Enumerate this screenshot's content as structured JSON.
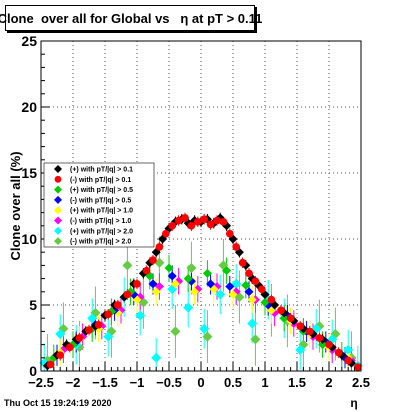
{
  "page": {
    "footer_date": "Thu Oct 15 19:24:19 2020"
  },
  "chart_data": {
    "type": "scatter",
    "title": "Clone  over all for Global vs   η at pT > 0.11",
    "xlabel": "η",
    "ylabel": "Clone  over all (%)",
    "xlim": [
      -2.5,
      2.5
    ],
    "ylim": [
      0,
      25
    ],
    "x_ticks": [
      -2.5,
      -2,
      -1.5,
      -1,
      -0.5,
      0,
      0.5,
      1,
      1.5,
      2,
      2.5
    ],
    "x_tick_labels": [
      "−2.5",
      "−2",
      "−1.5",
      "−1",
      "−0.5",
      "0",
      "0.5",
      "1",
      "1.5",
      "2",
      "2.5"
    ],
    "y_ticks": [
      0,
      5,
      10,
      15,
      20,
      25
    ],
    "y_tick_labels": [
      "0",
      "5",
      "10",
      "15",
      "20",
      "25"
    ],
    "grid": true,
    "legend_position": "left",
    "series": [
      {
        "name": "(+) with pT/|q| > 0.1",
        "color": "#000000",
        "marker": "diamond",
        "points": [
          [
            -2.4,
            0.4
          ],
          [
            -2.25,
            1.2
          ],
          [
            -2.1,
            2.0
          ],
          [
            -1.95,
            2.4
          ],
          [
            -1.8,
            3.0
          ],
          [
            -1.65,
            3.4
          ],
          [
            -1.5,
            4.2
          ],
          [
            -1.35,
            5.0
          ],
          [
            -1.2,
            5.6
          ],
          [
            -1.05,
            6.6
          ],
          [
            -0.9,
            7.4
          ],
          [
            -0.8,
            8.2
          ],
          [
            -0.7,
            9.0
          ],
          [
            -0.6,
            10.0
          ],
          [
            -0.5,
            10.8
          ],
          [
            -0.4,
            11.3
          ],
          [
            -0.3,
            11.5
          ],
          [
            -0.2,
            11.2
          ],
          [
            -0.1,
            11.4
          ],
          [
            0.0,
            11.3
          ],
          [
            0.1,
            11.5
          ],
          [
            0.2,
            11.2
          ],
          [
            0.3,
            11.6
          ],
          [
            0.4,
            11.0
          ],
          [
            0.5,
            10.0
          ],
          [
            0.6,
            9.0
          ],
          [
            0.7,
            8.0
          ],
          [
            0.8,
            7.0
          ],
          [
            0.9,
            6.5
          ],
          [
            1.0,
            5.8
          ],
          [
            1.15,
            5.0
          ],
          [
            1.3,
            4.4
          ],
          [
            1.45,
            3.8
          ],
          [
            1.6,
            3.2
          ],
          [
            1.75,
            2.8
          ],
          [
            1.9,
            2.4
          ],
          [
            2.05,
            1.8
          ],
          [
            2.2,
            1.2
          ],
          [
            2.35,
            0.6
          ]
        ],
        "errors": [
          0.3,
          0.4,
          0.4,
          0.4,
          0.4,
          0.4,
          0.4,
          0.4,
          0.4,
          0.4,
          0.4,
          0.4,
          0.4,
          0.4,
          0.4,
          0.4,
          0.4,
          0.4,
          0.4,
          0.4,
          0.4,
          0.4,
          0.4,
          0.4,
          0.4,
          0.4,
          0.4,
          0.4,
          0.4,
          0.4,
          0.4,
          0.4,
          0.4,
          0.4,
          0.4,
          0.4,
          0.4,
          0.4,
          0.3
        ]
      },
      {
        "name": "(-) with pT/|q| > 0.1",
        "color": "#ff0000",
        "marker": "circle",
        "points": [
          [
            -2.35,
            0.5
          ],
          [
            -2.2,
            1.2
          ],
          [
            -2.05,
            1.8
          ],
          [
            -1.9,
            2.5
          ],
          [
            -1.75,
            3.1
          ],
          [
            -1.6,
            3.5
          ],
          [
            -1.45,
            4.3
          ],
          [
            -1.3,
            5.0
          ],
          [
            -1.15,
            5.8
          ],
          [
            -1.0,
            6.6
          ],
          [
            -0.85,
            7.6
          ],
          [
            -0.75,
            8.4
          ],
          [
            -0.65,
            9.4
          ],
          [
            -0.55,
            10.4
          ],
          [
            -0.45,
            11.0
          ],
          [
            -0.35,
            11.4
          ],
          [
            -0.25,
            11.6
          ],
          [
            -0.15,
            11.0
          ],
          [
            -0.05,
            11.3
          ],
          [
            0.05,
            11.5
          ],
          [
            0.15,
            11.1
          ],
          [
            0.25,
            11.4
          ],
          [
            0.35,
            11.3
          ],
          [
            0.45,
            10.4
          ],
          [
            0.55,
            9.4
          ],
          [
            0.65,
            8.2
          ],
          [
            0.75,
            7.4
          ],
          [
            0.85,
            6.8
          ],
          [
            0.95,
            6.2
          ],
          [
            1.1,
            5.4
          ],
          [
            1.25,
            4.6
          ],
          [
            1.4,
            4.0
          ],
          [
            1.55,
            3.4
          ],
          [
            1.7,
            3.0
          ],
          [
            1.85,
            2.5
          ],
          [
            2.0,
            2.0
          ],
          [
            2.15,
            1.4
          ],
          [
            2.3,
            0.8
          ],
          [
            2.45,
            0.3
          ]
        ],
        "errors": [
          0.3,
          0.4,
          0.4,
          0.4,
          0.4,
          0.4,
          0.4,
          0.4,
          0.4,
          0.4,
          0.4,
          0.4,
          0.4,
          0.4,
          0.4,
          0.4,
          0.4,
          0.4,
          0.4,
          0.4,
          0.4,
          0.4,
          0.4,
          0.4,
          0.4,
          0.4,
          0.4,
          0.4,
          0.4,
          0.4,
          0.4,
          0.4,
          0.4,
          0.4,
          0.4,
          0.4,
          0.4,
          0.4,
          0.3
        ]
      },
      {
        "name": "(+) with pT/|q| > 0.5",
        "color": "#00cc00",
        "marker": "diamond",
        "points": [
          [
            -2.3,
            1.0
          ],
          [
            -2.0,
            2.0
          ],
          [
            -1.7,
            3.2
          ],
          [
            -1.4,
            4.5
          ],
          [
            -1.1,
            6.0
          ],
          [
            -0.8,
            7.2
          ],
          [
            -0.5,
            7.8
          ],
          [
            -0.2,
            7.0
          ],
          [
            0.1,
            7.4
          ],
          [
            0.4,
            7.6
          ],
          [
            0.7,
            6.5
          ],
          [
            1.0,
            5.2
          ],
          [
            1.3,
            4.0
          ],
          [
            1.6,
            3.0
          ],
          [
            1.9,
            2.0
          ],
          [
            2.2,
            1.2
          ]
        ],
        "errors": [
          1.0,
          1.0,
          1.0,
          1.0,
          1.0,
          1.0,
          1.0,
          1.0,
          1.0,
          1.0,
          1.0,
          1.0,
          1.0,
          1.0,
          1.0,
          1.0
        ]
      },
      {
        "name": "(-) with pT/|q| > 0.5",
        "color": "#0000ff",
        "marker": "diamond",
        "points": [
          [
            -2.25,
            1.2
          ],
          [
            -1.95,
            2.2
          ],
          [
            -1.65,
            3.5
          ],
          [
            -1.35,
            4.6
          ],
          [
            -1.05,
            5.8
          ],
          [
            -0.75,
            6.6
          ],
          [
            -0.45,
            7.2
          ],
          [
            -0.15,
            6.8
          ],
          [
            0.15,
            6.6
          ],
          [
            0.45,
            6.4
          ],
          [
            0.75,
            6.0
          ],
          [
            1.05,
            5.0
          ],
          [
            1.35,
            4.2
          ],
          [
            1.65,
            3.0
          ],
          [
            1.95,
            2.2
          ],
          [
            2.25,
            1.0
          ]
        ],
        "errors": [
          0.8,
          0.8,
          0.8,
          0.8,
          0.8,
          0.8,
          0.8,
          0.8,
          0.8,
          0.8,
          0.8,
          0.8,
          0.8,
          0.8,
          0.8,
          0.8
        ]
      },
      {
        "name": "(+) with pT/|q| > 1.0",
        "color": "#ffff00",
        "marker": "diamond",
        "points": [
          [
            -2.2,
            1.4
          ],
          [
            -1.9,
            2.4
          ],
          [
            -1.6,
            3.2
          ],
          [
            -1.3,
            4.4
          ],
          [
            -1.0,
            5.4
          ],
          [
            -0.7,
            6.0
          ],
          [
            -0.4,
            6.6
          ],
          [
            -0.1,
            6.0
          ],
          [
            0.2,
            6.2
          ],
          [
            0.5,
            5.8
          ],
          [
            0.8,
            5.4
          ],
          [
            1.1,
            4.6
          ],
          [
            1.4,
            3.8
          ],
          [
            1.7,
            2.8
          ],
          [
            2.0,
            1.8
          ],
          [
            2.3,
            1.0
          ]
        ],
        "errors": [
          1.0,
          1.0,
          1.0,
          1.0,
          1.0,
          1.0,
          1.0,
          1.0,
          1.0,
          1.0,
          1.0,
          1.0,
          1.0,
          1.0,
          1.0,
          1.0
        ]
      },
      {
        "name": "(-) with pT/|q| > 1.0",
        "color": "#ff00ff",
        "marker": "diamond",
        "points": [
          [
            -2.15,
            1.6
          ],
          [
            -1.85,
            2.6
          ],
          [
            -1.55,
            3.4
          ],
          [
            -1.25,
            4.6
          ],
          [
            -0.95,
            5.6
          ],
          [
            -0.65,
            6.4
          ],
          [
            -0.35,
            6.8
          ],
          [
            -0.05,
            6.2
          ],
          [
            0.25,
            6.4
          ],
          [
            0.55,
            6.0
          ],
          [
            0.85,
            5.4
          ],
          [
            1.15,
            4.4
          ],
          [
            1.45,
            3.6
          ],
          [
            1.75,
            2.6
          ],
          [
            2.05,
            1.6
          ],
          [
            2.35,
            0.8
          ]
        ],
        "errors": [
          1.0,
          1.0,
          1.0,
          1.0,
          1.0,
          1.0,
          1.0,
          1.0,
          1.0,
          1.0,
          1.0,
          1.0,
          1.0,
          1.0,
          1.0,
          1.0
        ]
      },
      {
        "name": "(+) with pT/|q| > 2.0",
        "color": "#00ffff",
        "marker": "diamond",
        "points": [
          [
            -2.45,
            0.6
          ],
          [
            -2.2,
            2.8
          ],
          [
            -1.95,
            2.0
          ],
          [
            -1.7,
            4.0
          ],
          [
            -1.45,
            2.6
          ],
          [
            -1.2,
            5.6
          ],
          [
            -0.95,
            4.2
          ],
          [
            -0.7,
            1.0
          ],
          [
            -0.45,
            6.2
          ],
          [
            -0.2,
            4.8
          ],
          [
            0.05,
            3.2
          ],
          [
            0.3,
            5.8
          ],
          [
            0.55,
            6.6
          ],
          [
            0.8,
            3.6
          ],
          [
            1.05,
            5.4
          ],
          [
            1.3,
            4.0
          ],
          [
            1.55,
            1.6
          ],
          [
            1.8,
            3.2
          ],
          [
            2.05,
            2.4
          ],
          [
            2.3,
            1.6
          ],
          [
            2.45,
            0.4
          ]
        ],
        "errors": [
          1.5,
          1.5,
          1.5,
          1.5,
          1.5,
          1.5,
          1.5,
          1.5,
          1.5,
          1.5,
          1.5,
          1.5,
          1.5,
          1.5,
          1.5,
          1.5,
          1.5,
          1.5,
          1.5,
          1.5,
          1.5
        ]
      },
      {
        "name": "(-) with pT/|q| > 2.0",
        "color": "#66cc44",
        "marker": "diamond",
        "points": [
          [
            -2.4,
            0.8
          ],
          [
            -2.15,
            3.2
          ],
          [
            -1.9,
            1.8
          ],
          [
            -1.65,
            4.4
          ],
          [
            -1.4,
            3.0
          ],
          [
            -1.15,
            8.0
          ],
          [
            -0.9,
            5.2
          ],
          [
            -0.65,
            8.2
          ],
          [
            -0.4,
            3.0
          ],
          [
            -0.15,
            7.8
          ],
          [
            0.1,
            2.6
          ],
          [
            0.35,
            8.0
          ],
          [
            0.6,
            5.6
          ],
          [
            0.85,
            2.4
          ],
          [
            1.1,
            4.6
          ],
          [
            1.35,
            3.8
          ],
          [
            1.6,
            2.0
          ],
          [
            1.85,
            3.4
          ],
          [
            2.1,
            2.8
          ],
          [
            2.35,
            1.0
          ]
        ],
        "errors": [
          2.0,
          2.0,
          2.0,
          2.0,
          2.0,
          2.0,
          2.0,
          2.0,
          2.0,
          2.0,
          2.0,
          2.0,
          2.0,
          2.0,
          2.0,
          2.0,
          2.0,
          2.0,
          2.0,
          2.0
        ]
      }
    ]
  }
}
